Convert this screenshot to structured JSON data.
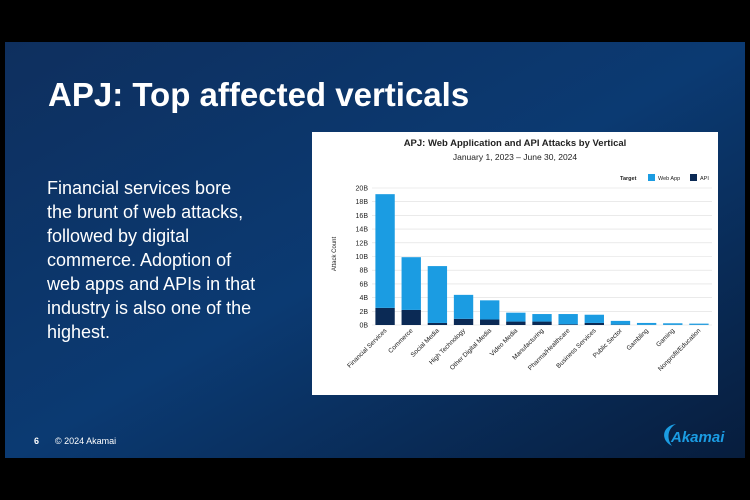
{
  "slide": {
    "title": "APJ: Top affected verticals",
    "body_lines": [
      "Financial services bore",
      "the brunt of web attacks,",
      "followed by digital",
      "commerce. Adoption of",
      "web apps and APIs in that",
      "industry is also one of the",
      "highest."
    ],
    "page_number": "6",
    "copyright": "© 2024 Akamai",
    "logo": "Akamai"
  },
  "chart_data": {
    "type": "stacked_bar",
    "title": "APJ: Web Application and API Attacks by Vertical",
    "subtitle": "January 1, 2023 – June 30, 2024",
    "y_label": "Attack Count",
    "legend_title": "Target",
    "categories": [
      "Financial Services",
      "Commerce",
      "Social Media",
      "High Technology",
      "Other Digital Media",
      "Video Media",
      "Manufacturing",
      "Pharma/Healthcare",
      "Business Services",
      "Public Sector",
      "Gambling",
      "Gaming",
      "Nonprofit/Education"
    ],
    "series": [
      {
        "name": "API",
        "color": "#0b2a55",
        "values": [
          2.5,
          2.2,
          0.3,
          0.9,
          0.8,
          0.5,
          0.5,
          0.1,
          0.3,
          0.05,
          0.02,
          0.02,
          0.02
        ]
      },
      {
        "name": "Web App",
        "color": "#1b9ce2",
        "values": [
          16.6,
          7.7,
          8.3,
          3.5,
          2.8,
          1.3,
          1.1,
          1.5,
          1.2,
          0.55,
          0.28,
          0.23,
          0.18
        ]
      }
    ],
    "ylim": [
      0,
      20
    ],
    "yticks": [
      {
        "value": 0,
        "label": "0B"
      },
      {
        "value": 2,
        "label": "2B"
      },
      {
        "value": 4,
        "label": "4B"
      },
      {
        "value": 6,
        "label": "6B"
      },
      {
        "value": 8,
        "label": "8B"
      },
      {
        "value": 10,
        "label": "10B"
      },
      {
        "value": 12,
        "label": "12B"
      },
      {
        "value": 14,
        "label": "14B"
      },
      {
        "value": 16,
        "label": "16B"
      },
      {
        "value": 18,
        "label": "18B"
      },
      {
        "value": 20,
        "label": "20B"
      }
    ],
    "grid": true
  }
}
